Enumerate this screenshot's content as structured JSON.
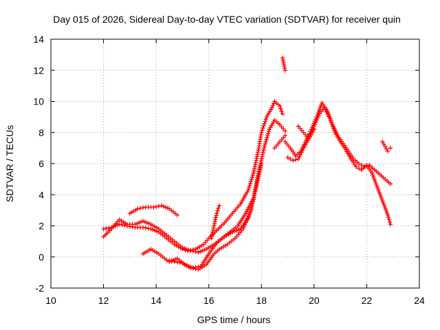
{
  "chart_data": {
    "type": "scatter",
    "title": "Day 015 of 2026, Sidereal Day-to-day VTEC variation (SDTVAR) for receiver quin",
    "xlabel": "GPS time / hours",
    "ylabel": "SDTVAR / TECUs",
    "xlim": [
      10,
      24
    ],
    "ylim": [
      -2,
      14
    ],
    "xticks": [
      "10",
      "12",
      "14",
      "16",
      "18",
      "20",
      "22",
      "24"
    ],
    "yticks": [
      "-2",
      "0",
      "2",
      "4",
      "6",
      "8",
      "10",
      "12",
      "14"
    ],
    "grid": true,
    "marker": "plus",
    "color": "#ff0000",
    "series": [
      {
        "name": "track-a",
        "x": [
          12.0,
          12.3,
          12.6,
          12.9,
          13.2,
          13.5,
          13.8,
          14.1,
          14.4,
          14.7,
          15.0,
          15.2,
          15.5,
          15.8,
          16.0,
          16.3,
          16.6,
          16.9,
          17.2,
          17.5,
          17.7,
          17.9,
          18.0,
          18.2,
          18.4,
          18.5,
          18.7,
          18.8
        ],
        "y": [
          1.8,
          1.9,
          2.1,
          2.0,
          1.9,
          1.9,
          1.8,
          1.6,
          1.2,
          0.8,
          0.5,
          0.4,
          0.5,
          0.8,
          1.2,
          1.7,
          2.2,
          2.8,
          3.4,
          4.3,
          5.4,
          7.0,
          8.0,
          9.0,
          9.6,
          10.0,
          9.7,
          9.2
        ]
      },
      {
        "name": "track-b",
        "x": [
          12.0,
          12.3,
          12.6,
          12.9,
          13.2,
          13.5,
          13.8,
          14.1,
          14.4,
          14.7,
          15.0,
          15.3,
          15.6,
          15.9,
          16.2,
          16.5,
          16.8,
          17.1,
          17.4,
          17.7,
          17.9,
          18.1,
          18.3,
          18.5,
          18.7,
          18.9
        ],
        "y": [
          1.3,
          1.8,
          2.4,
          2.1,
          2.1,
          2.3,
          2.1,
          1.8,
          1.4,
          1.0,
          0.6,
          0.4,
          0.3,
          0.5,
          0.8,
          1.2,
          1.6,
          2.0,
          2.8,
          3.8,
          5.5,
          7.0,
          8.2,
          8.8,
          8.5,
          8.1
        ]
      },
      {
        "name": "track-c",
        "x": [
          13.0,
          13.3,
          13.6,
          13.9,
          14.2,
          14.5,
          14.8
        ],
        "y": [
          2.8,
          3.1,
          3.2,
          3.2,
          3.3,
          3.1,
          2.7
        ]
      },
      {
        "name": "track-d",
        "x": [
          13.5,
          13.8,
          14.1,
          14.4,
          14.7,
          15.0,
          15.3,
          15.6,
          15.9,
          16.2,
          16.4,
          16.7,
          17.0,
          17.3,
          17.6,
          17.8,
          18.0
        ],
        "y": [
          0.2,
          0.5,
          0.2,
          -0.2,
          -0.3,
          -0.4,
          -0.7,
          -0.8,
          -0.5,
          0.2,
          0.5,
          0.8,
          1.2,
          1.8,
          3.0,
          4.5,
          6.0
        ]
      },
      {
        "name": "track-e",
        "x": [
          14.5,
          14.8,
          15.1,
          15.4,
          15.7,
          16.0,
          16.3,
          16.6,
          16.9,
          17.2,
          17.5,
          17.7
        ],
        "y": [
          -0.3,
          -0.1,
          -0.5,
          -0.7,
          -0.6,
          0.2,
          0.9,
          1.3,
          1.6,
          1.8,
          2.5,
          3.7
        ]
      },
      {
        "name": "track-f",
        "x": [
          16.1,
          16.2,
          16.3,
          16.4
        ],
        "y": [
          1.2,
          2.0,
          2.8,
          3.3
        ]
      },
      {
        "name": "track-g",
        "x": [
          18.8,
          18.85,
          18.9
        ],
        "y": [
          12.8,
          12.4,
          12.0
        ]
      },
      {
        "name": "track-h",
        "x": [
          18.5,
          18.7,
          18.9
        ],
        "y": [
          7.0,
          7.4,
          7.8
        ]
      },
      {
        "name": "track-i",
        "x": [
          18.9,
          19.1,
          19.3,
          19.5,
          19.7,
          19.9,
          20.1,
          20.3,
          20.5,
          20.7,
          20.9,
          21.1,
          21.3,
          21.5,
          21.7,
          21.9,
          22.1,
          22.3,
          22.5,
          22.7,
          22.9
        ],
        "y": [
          7.4,
          7.0,
          6.5,
          6.8,
          7.5,
          8.2,
          9.0,
          9.9,
          9.4,
          8.5,
          7.8,
          7.3,
          6.8,
          6.3,
          6.0,
          5.8,
          5.9,
          5.6,
          5.3,
          5.0,
          4.7
        ]
      },
      {
        "name": "track-j",
        "x": [
          19.0,
          19.2,
          19.4,
          19.6,
          19.8,
          20.0,
          20.2,
          20.4,
          20.6,
          20.8,
          21.0,
          21.2,
          21.4,
          21.6,
          21.8,
          22.0,
          22.2,
          22.4,
          22.6,
          22.8,
          22.9
        ],
        "y": [
          6.4,
          6.2,
          6.3,
          7.0,
          7.6,
          8.4,
          9.2,
          9.6,
          8.9,
          8.0,
          7.4,
          6.9,
          6.3,
          5.8,
          5.6,
          5.9,
          5.4,
          4.5,
          3.6,
          2.7,
          2.1
        ]
      },
      {
        "name": "track-k",
        "x": [
          22.6,
          22.7,
          22.8,
          22.9
        ],
        "y": [
          7.4,
          7.1,
          6.8,
          7.0
        ]
      },
      {
        "name": "track-l",
        "x": [
          19.4,
          19.6,
          19.8,
          20.0
        ],
        "y": [
          8.4,
          8.0,
          7.6,
          8.2
        ]
      }
    ]
  }
}
